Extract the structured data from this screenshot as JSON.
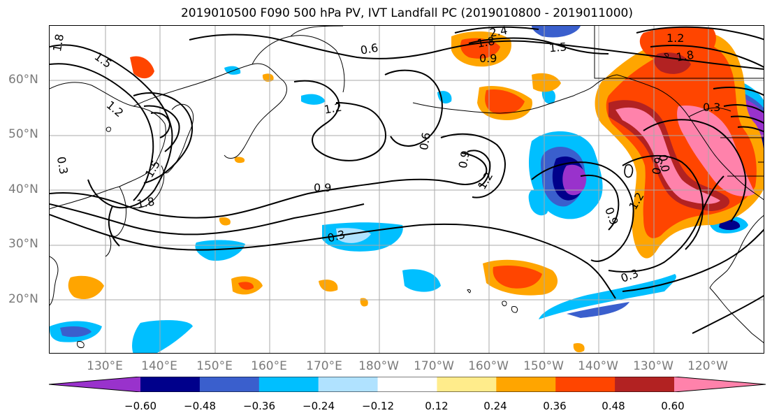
{
  "title": "2019010500 F090 500 hPa PV, IVT Landfall PC (2019010800 - 2019011000)",
  "lat_labels": [
    "60°N",
    "50°N",
    "40°N",
    "30°N",
    "20°N"
  ],
  "lon_labels": [
    "130°E",
    "140°E",
    "150°E",
    "160°E",
    "170°E",
    "180°W",
    "170°W",
    "160°W",
    "150°W",
    "140°W",
    "130°W",
    "120°W"
  ],
  "contour_labels": [
    "1.8",
    "1.5",
    "1.2",
    "0.3",
    "1.5",
    "1.8",
    "0.6",
    "1.2",
    "0.9",
    "0.6",
    "0.9",
    "1.2",
    "0.3",
    "1.5",
    "0.9",
    "2.4",
    "1.8",
    "1.2",
    "1.8",
    "0.3",
    "0.9",
    "1.2",
    "0.3",
    "0.9",
    "0.0"
  ],
  "colorbar": {
    "ticks": [
      "−0.60",
      "−0.48",
      "−0.36",
      "−0.24",
      "−0.12",
      "0.12",
      "0.24",
      "0.36",
      "0.48",
      "0.60"
    ],
    "colors": [
      "#9932cc",
      "#00008b",
      "#3a5fcd",
      "#00bfff",
      "#b0e2ff",
      "#ffffff",
      "#ffec8b",
      "#ffa500",
      "#ff4500",
      "#b22222",
      "#ff82ab"
    ]
  },
  "colors": {
    "land_outline": "#000000",
    "grid": "#a9a9a9",
    "axis_label": "#7a7a7a"
  }
}
